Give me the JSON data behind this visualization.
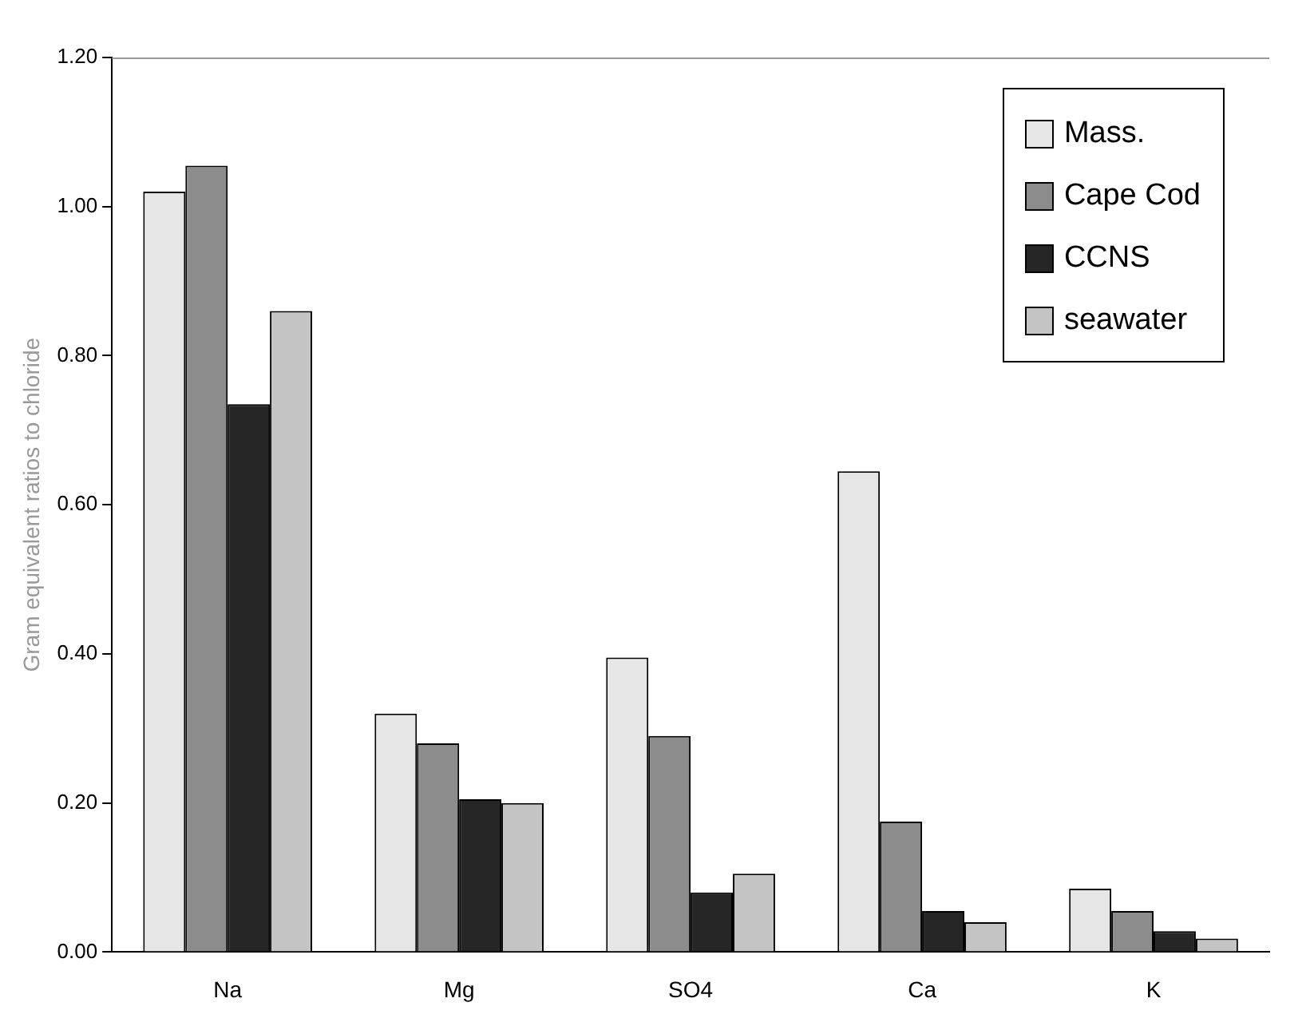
{
  "chart_data": {
    "type": "bar",
    "ylabel": "Gram equivalent ratios to chloride",
    "categories": [
      "Na",
      "Mg",
      "SO4",
      "Ca",
      "K"
    ],
    "series": [
      {
        "name": "Mass.",
        "color": "#e6e6e6",
        "values": [
          1.02,
          0.32,
          0.395,
          0.645,
          0.085
        ]
      },
      {
        "name": "Cape Cod",
        "color": "#8c8c8c",
        "values": [
          1.055,
          0.28,
          0.29,
          0.175,
          0.055
        ]
      },
      {
        "name": "CCNS",
        "color": "#262626",
        "values": [
          0.735,
          0.205,
          0.08,
          0.055,
          0.028
        ]
      },
      {
        "name": "seawater",
        "color": "#c4c4c4",
        "values": [
          0.86,
          0.2,
          0.105,
          0.04,
          0.018
        ]
      }
    ],
    "ylim": [
      0,
      1.2
    ],
    "yticks": [
      {
        "value": 0,
        "label": "0.00"
      },
      {
        "value": 0.2,
        "label": "0.20"
      },
      {
        "value": 0.4,
        "label": "0.40"
      },
      {
        "value": 0.6,
        "label": "0.60"
      },
      {
        "value": 0.8,
        "label": "0.80"
      },
      {
        "value": 1,
        "label": "1.00"
      },
      {
        "value": 1.2,
        "label": "1.20"
      }
    ],
    "grid": false,
    "legend": "top right"
  }
}
